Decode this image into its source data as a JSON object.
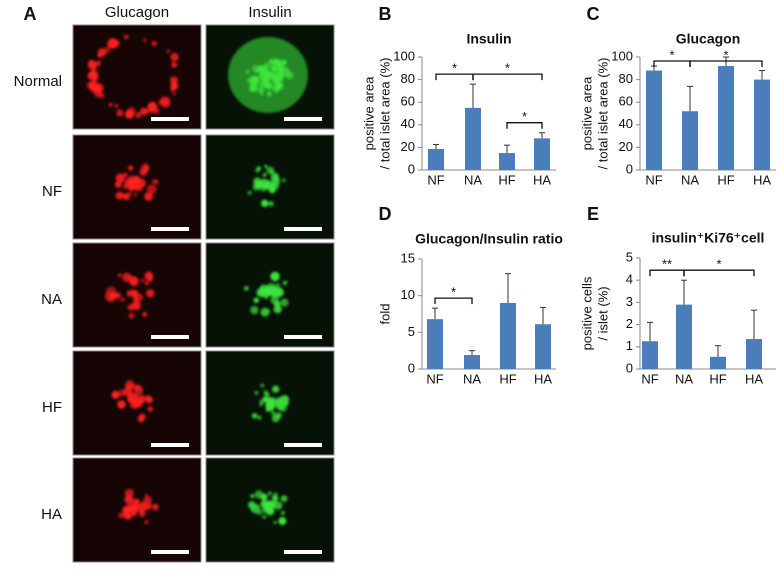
{
  "panel_a": {
    "label": "A",
    "columns": [
      "Glucagon",
      "Insulin"
    ],
    "rows": [
      "Normal",
      "NF",
      "NA",
      "HF",
      "HA"
    ]
  },
  "chart_data": [
    {
      "type": "bar",
      "panel": "B",
      "title": "Insulin",
      "ylabel": [
        "positive area",
        "/ total islet area (%)"
      ],
      "categories": [
        "NF",
        "NA",
        "HF",
        "HA"
      ],
      "values": [
        18.6,
        55,
        15,
        28
      ],
      "errors": [
        4,
        21,
        7,
        5
      ],
      "color": "#4a7ebb",
      "ylim": [
        0,
        100
      ],
      "yticks": [
        0,
        20,
        40,
        60,
        80,
        100
      ],
      "annotations": [
        {
          "label": "*",
          "between": [
            "NF",
            "NA"
          ]
        },
        {
          "label": "*",
          "between": [
            "NA",
            "HA"
          ]
        },
        {
          "label": "*",
          "between": [
            "HF",
            "HA"
          ]
        }
      ]
    },
    {
      "type": "bar",
      "panel": "C",
      "title": "Glucagon",
      "ylabel": [
        "positive area",
        "/ total islet area (%)"
      ],
      "categories": [
        "NF",
        "NA",
        "HF",
        "HA"
      ],
      "values": [
        88,
        52,
        92,
        80
      ],
      "errors": [
        4,
        22,
        8,
        8
      ],
      "color": "#4a7ebb",
      "ylim": [
        0,
        100
      ],
      "yticks": [
        0,
        20,
        40,
        60,
        80,
        100
      ],
      "annotations": [
        {
          "label": "*",
          "between": [
            "NF",
            "NA"
          ]
        },
        {
          "label": "*",
          "between": [
            "NA",
            "HA"
          ]
        }
      ]
    },
    {
      "type": "bar",
      "panel": "D",
      "title": "Glucagon/Insulin ratio",
      "ylabel": [
        "fold"
      ],
      "categories": [
        "NF",
        "NA",
        "HF",
        "HA"
      ],
      "values": [
        6.8,
        1.9,
        9,
        6.1
      ],
      "errors": [
        1.5,
        0.6,
        4,
        2.3
      ],
      "color": "#4a7ebb",
      "ylim": [
        0,
        15
      ],
      "yticks": [
        0,
        5,
        10,
        15
      ],
      "annotations": [
        {
          "label": "*",
          "between": [
            "NF",
            "NA"
          ]
        }
      ]
    },
    {
      "type": "bar",
      "panel": "E",
      "title": "insulin⁺Ki76⁺cell",
      "ylabel": [
        "positive cells",
        "/ islet (%)"
      ],
      "categories": [
        "NF",
        "NA",
        "HF",
        "HA"
      ],
      "values": [
        1.25,
        2.9,
        0.55,
        1.35
      ],
      "errors": [
        0.85,
        1.1,
        0.5,
        1.3
      ],
      "color": "#4a7ebb",
      "ylim": [
        0,
        5
      ],
      "yticks": [
        0,
        1,
        2,
        3,
        4,
        5
      ],
      "annotations": [
        {
          "label": "**",
          "between": [
            "NF",
            "NA"
          ]
        },
        {
          "label": "*",
          "between": [
            "NA",
            "HA"
          ]
        }
      ]
    }
  ]
}
